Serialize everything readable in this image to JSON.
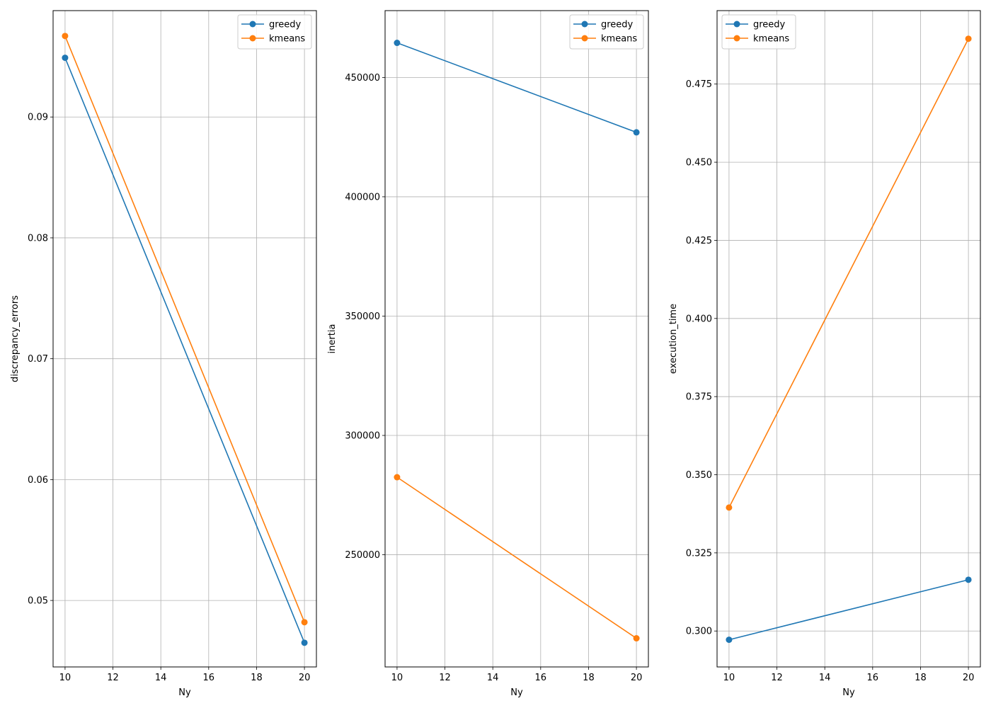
{
  "chart_data": [
    {
      "type": "line",
      "xlabel": "Ny",
      "ylabel": "discrepancy_errors",
      "x": [
        10,
        20
      ],
      "xlim": [
        9.5,
        20.5
      ],
      "ylim": [
        0.0445,
        0.0988
      ],
      "xticks": [
        10,
        12,
        14,
        16,
        18,
        20
      ],
      "yticks": [
        0.05,
        0.06,
        0.07,
        0.08,
        0.09
      ],
      "ytick_labels": [
        "0.05",
        "0.06",
        "0.07",
        "0.08",
        "0.09"
      ],
      "grid": true,
      "legend_position": "top-right",
      "series": [
        {
          "name": "greedy",
          "color": "#1f77b4",
          "values": [
            0.0949,
            0.0465
          ]
        },
        {
          "name": "kmeans",
          "color": "#ff7f0e",
          "values": [
            0.0967,
            0.0482
          ]
        }
      ]
    },
    {
      "type": "line",
      "xlabel": "Ny",
      "ylabel": "inertia",
      "x": [
        10,
        20
      ],
      "xlim": [
        9.5,
        20.5
      ],
      "ylim": [
        203000,
        478000
      ],
      "xticks": [
        10,
        12,
        14,
        16,
        18,
        20
      ],
      "yticks": [
        250000,
        300000,
        350000,
        400000,
        450000
      ],
      "ytick_labels": [
        "250000",
        "300000",
        "350000",
        "400000",
        "450000"
      ],
      "grid": true,
      "legend_position": "top-right",
      "series": [
        {
          "name": "greedy",
          "color": "#1f77b4",
          "values": [
            464500,
            427000
          ]
        },
        {
          "name": "kmeans",
          "color": "#ff7f0e",
          "values": [
            282500,
            215000
          ]
        }
      ]
    },
    {
      "type": "line",
      "xlabel": "Ny",
      "ylabel": "execution_time",
      "x": [
        10,
        20
      ],
      "xlim": [
        9.5,
        20.5
      ],
      "ylim": [
        0.2885,
        0.4985
      ],
      "xticks": [
        10,
        12,
        14,
        16,
        18,
        20
      ],
      "yticks": [
        0.3,
        0.325,
        0.35,
        0.375,
        0.4,
        0.425,
        0.45,
        0.475
      ],
      "ytick_labels": [
        "0.300",
        "0.325",
        "0.350",
        "0.375",
        "0.400",
        "0.425",
        "0.450",
        "0.475"
      ],
      "grid": true,
      "legend_position": "top-left",
      "series": [
        {
          "name": "greedy",
          "color": "#1f77b4",
          "values": [
            0.2972,
            0.3164
          ]
        },
        {
          "name": "kmeans",
          "color": "#ff7f0e",
          "values": [
            0.3395,
            0.4895
          ]
        }
      ]
    }
  ]
}
